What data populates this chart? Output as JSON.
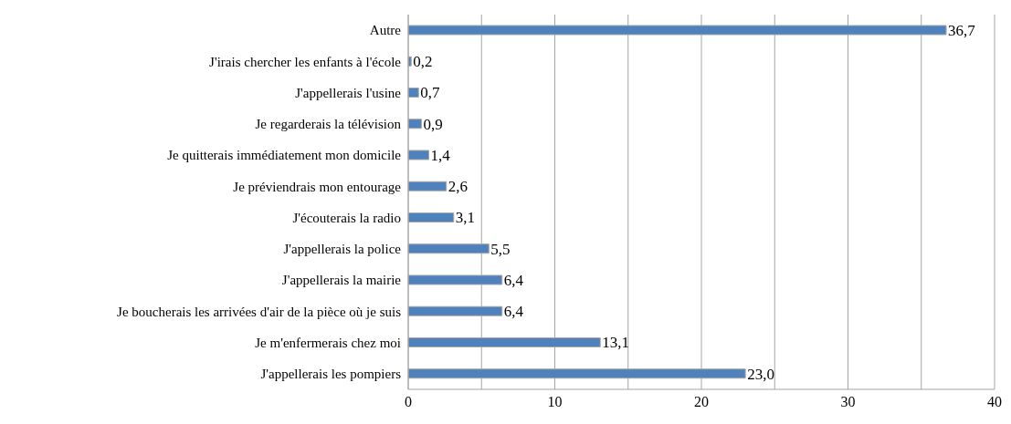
{
  "chart_data": {
    "type": "bar",
    "orientation": "horizontal",
    "categories": [
      "Autre",
      "J'irais chercher les enfants à l'école",
      "J'appellerais l'usine",
      "Je regarderais la télévision",
      "Je quitterais immédiatement mon domicile",
      "Je préviendrais mon entourage",
      "J'écouterais la radio",
      "J'appellerais la police",
      "J'appellerais la mairie",
      "Je boucherais les arrivées d'air de la pièce où je suis",
      "Je m'enfermerais chez moi",
      "J'appellerais les pompiers"
    ],
    "values": [
      36.7,
      0.2,
      0.7,
      0.9,
      1.4,
      2.6,
      3.1,
      5.5,
      6.4,
      6.4,
      13.1,
      23.0
    ],
    "value_labels": [
      "36,7",
      "0,2",
      "0,7",
      "0,9",
      "1,4",
      "2,6",
      "3,1",
      "5,5",
      "6,4",
      "6,4",
      "13,1",
      "23,0"
    ],
    "color": "#4f81bd",
    "xlim": [
      0,
      40
    ],
    "xticks": [
      0,
      {
        "value": 5,
        "label": null
      },
      10,
      {
        "value": 15,
        "label": null
      },
      20,
      {
        "value": 25,
        "label": null
      },
      30,
      {
        "value": 35,
        "label": null
      },
      40
    ],
    "grid": "x"
  }
}
